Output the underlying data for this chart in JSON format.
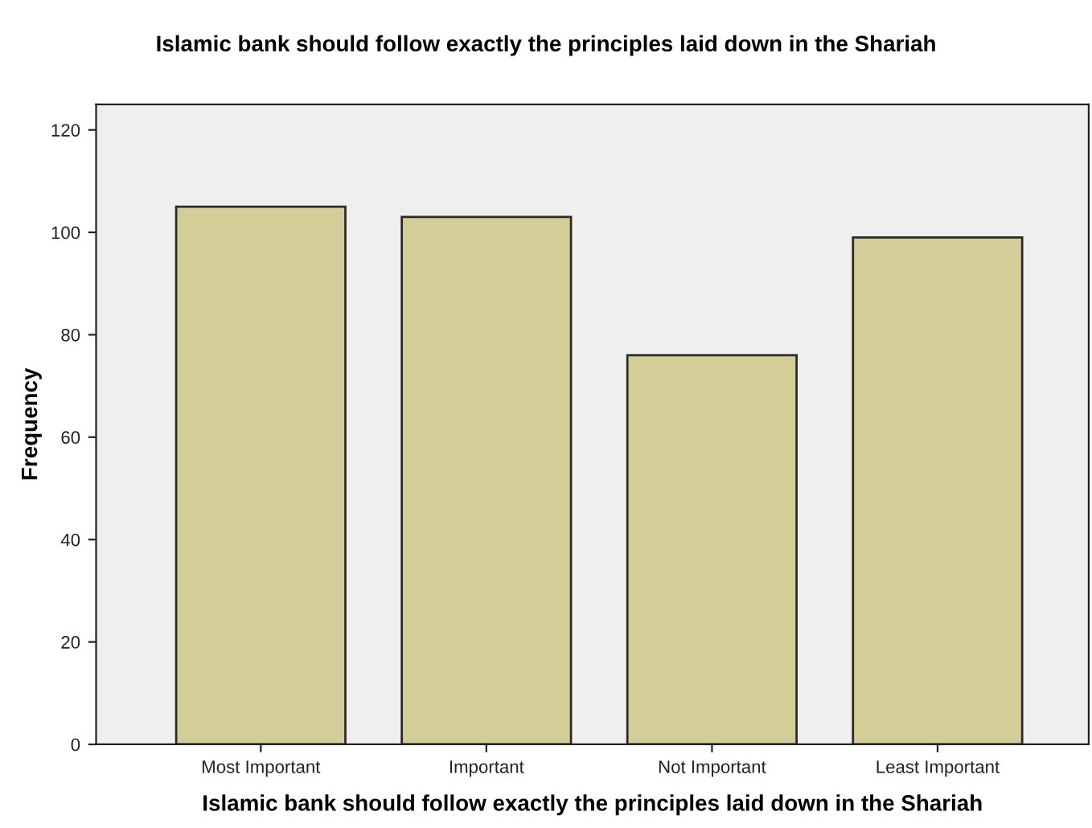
{
  "chart_data": {
    "type": "bar",
    "title": "Islamic bank should follow exactly the principles laid down in the Shariah",
    "xlabel": "Islamic bank should follow exactly the principles laid down in the Shariah",
    "ylabel": "Frequency",
    "categories": [
      "Most Important",
      "Important",
      "Not Important",
      "Least Important"
    ],
    "values": [
      105,
      103,
      76,
      99
    ],
    "color": "#d3ce97",
    "ylim": [
      0,
      125
    ],
    "yticks": [
      0,
      20,
      40,
      60,
      80,
      100,
      120
    ],
    "grid": false,
    "legend": false
  }
}
